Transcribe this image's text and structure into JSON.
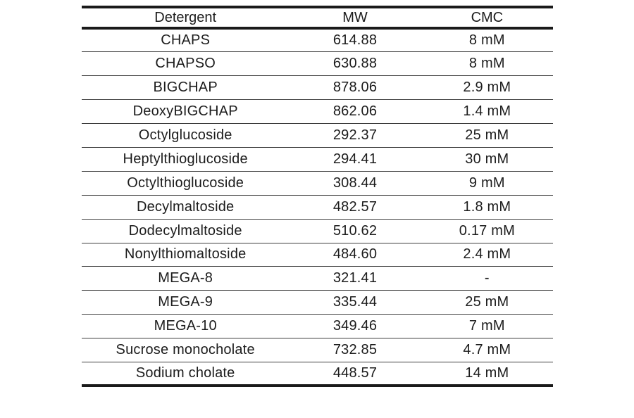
{
  "table": {
    "columns": [
      "Detergent",
      "MW",
      "CMC"
    ],
    "rows": [
      [
        "CHAPS",
        "614.88",
        "8 mM"
      ],
      [
        "CHAPSO",
        "630.88",
        "8 mM"
      ],
      [
        "BIGCHAP",
        "878.06",
        "2.9 mM"
      ],
      [
        "DeoxyBIGCHAP",
        "862.06",
        "1.4 mM"
      ],
      [
        "Octylglucoside",
        "292.37",
        "25 mM"
      ],
      [
        "Heptylthioglucoside",
        "294.41",
        "30 mM"
      ],
      [
        "Octylthioglucoside",
        "308.44",
        "9 mM"
      ],
      [
        "Decylmaltoside",
        "482.57",
        "1.8 mM"
      ],
      [
        "Dodecylmaltoside",
        "510.62",
        "0.17 mM"
      ],
      [
        "Nonylthiomaltoside",
        "484.60",
        "2.4 mM"
      ],
      [
        "MEGA-8",
        "321.41",
        "-"
      ],
      [
        "MEGA-9",
        "335.44",
        "25 mM"
      ],
      [
        "MEGA-10",
        "349.46",
        "7 mM"
      ],
      [
        "Sucrose monocholate",
        "732.85",
        "4.7 mM"
      ],
      [
        "Sodium cholate",
        "448.57",
        "14 mM"
      ]
    ]
  },
  "colors": {
    "background": "#ffffff",
    "text": "#1c1c1c",
    "border_thick": "#1a1a1a",
    "border_thin": "#3d3d3d"
  }
}
